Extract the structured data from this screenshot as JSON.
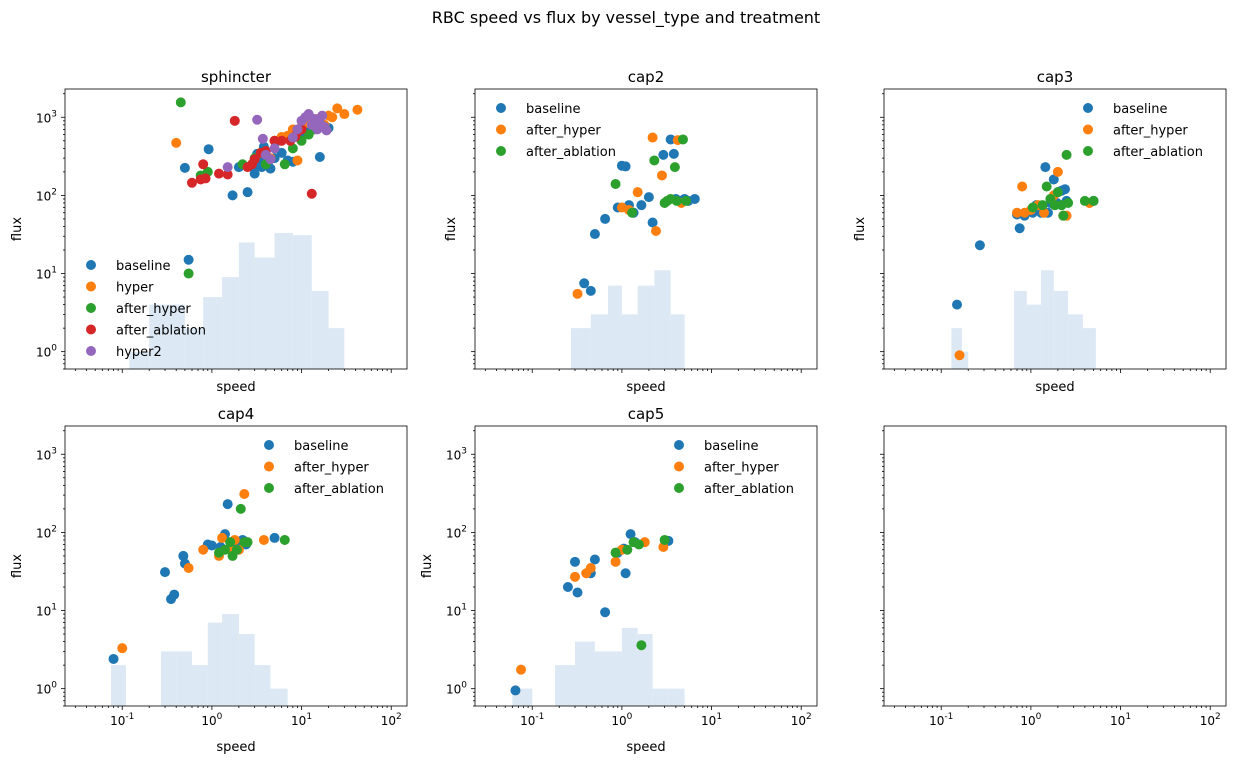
{
  "suptitle": "RBC speed vs flux by vessel_type and treatment",
  "colors": {
    "baseline": "#1f77b4",
    "hyper": "#ff7f0e",
    "after_hyper": "#ff7f0e",
    "after_ablation": "#2ca02c",
    "sphincter_after_hyper": "#2ca02c",
    "sphincter_after_ablation": "#d62728",
    "hyper2": "#9467bd",
    "hist": "#dce8f4"
  },
  "axes_common": {
    "xscale": "log",
    "yscale": "log",
    "xlim": [
      0.023,
      150
    ],
    "ylim": [
      0.6,
      2300
    ],
    "xticks": [
      0.1,
      1,
      10,
      100
    ],
    "xticklabels": [
      "10^-1",
      "10^0",
      "10^1",
      "10^2"
    ],
    "yticks": [
      1,
      10,
      100,
      1000
    ],
    "yticklabels": [
      "10^0",
      "10^1",
      "10^2",
      "10^3"
    ]
  },
  "chart_data": [
    {
      "type": "scatter",
      "title": "sphincter",
      "xlabel": "speed",
      "ylabel": "flux",
      "legend_position": "lower-left",
      "hist_bins": [
        0.12,
        0.2,
        0.3,
        0.5,
        0.8,
        1.3,
        2,
        3,
        5,
        8,
        13,
        20,
        30,
        45
      ],
      "hist_counts": [
        1,
        4,
        4,
        2,
        5,
        9,
        25,
        16,
        33,
        31,
        6,
        2,
        0
      ],
      "series": [
        {
          "name": "baseline",
          "color": "#1f77b4",
          "x": [
            0.5,
            0.55,
            0.92,
            1.7,
            2.0,
            2.5,
            3.0,
            3.5,
            4.0,
            4.5,
            5.0,
            6.0,
            7.0,
            8.0,
            3.2,
            3.8,
            5.5,
            10,
            12,
            14,
            20,
            16,
            2.9,
            3.6,
            4.2
          ],
          "y": [
            225,
            15,
            390,
            100,
            230,
            110,
            190,
            260,
            290,
            220,
            300,
            350,
            280,
            270,
            340,
            420,
            500,
            600,
            650,
            720,
            730,
            310,
            230,
            230,
            250
          ]
        },
        {
          "name": "hyper",
          "color": "#ff7f0e",
          "x": [
            0.4,
            8,
            10,
            12,
            15,
            20,
            25,
            30,
            42,
            6,
            7,
            5,
            4.5,
            9,
            18,
            22
          ],
          "y": [
            470,
            700,
            750,
            850,
            950,
            1050,
            1300,
            1100,
            1250,
            560,
            580,
            500,
            300,
            280,
            800,
            1000
          ]
        },
        {
          "name": "after_hyper",
          "color": "#2ca02c",
          "x": [
            0.45,
            0.55,
            0.75,
            0.9,
            2.2,
            3.0,
            3.5,
            4.0,
            6.5,
            8,
            10,
            12,
            14,
            16,
            18
          ],
          "y": [
            1550,
            10,
            180,
            200,
            250,
            300,
            350,
            250,
            250,
            400,
            500,
            600,
            700,
            800,
            750
          ]
        },
        {
          "name": "after_ablation",
          "color": "#d62728",
          "x": [
            0.6,
            0.75,
            0.8,
            0.85,
            1.2,
            1.5,
            1.8,
            2.5,
            2.8,
            3.0,
            3.5,
            4.0,
            5.0,
            6.0,
            7.5,
            8.5,
            9,
            10,
            13
          ],
          "y": [
            145,
            160,
            250,
            165,
            190,
            185,
            900,
            230,
            250,
            290,
            350,
            370,
            500,
            500,
            500,
            560,
            650,
            700,
            105
          ]
        },
        {
          "name": "hyper2",
          "color": "#9467bd",
          "x": [
            1.5,
            3.2,
            3.7,
            4.0,
            4.5,
            5.0,
            8.0,
            9,
            10,
            11,
            12,
            13,
            14,
            15,
            16,
            17,
            18,
            19
          ],
          "y": [
            230,
            930,
            530,
            330,
            290,
            400,
            550,
            700,
            900,
            1000,
            1100,
            800,
            950,
            700,
            850,
            1050,
            750,
            680
          ]
        }
      ]
    },
    {
      "type": "scatter",
      "title": "cap2",
      "xlabel": "speed",
      "ylabel": "flux",
      "legend_position": "upper-left",
      "hist_bins": [
        0.27,
        0.45,
        0.7,
        1.0,
        1.5,
        2.3,
        3.5,
        5.0,
        7.8
      ],
      "hist_counts": [
        2,
        3,
        7,
        3,
        7,
        11,
        3,
        0
      ],
      "series": [
        {
          "name": "baseline",
          "color": "#1f77b4",
          "x": [
            0.38,
            0.45,
            0.5,
            0.65,
            0.9,
            1.0,
            1.1,
            1.2,
            1.35,
            1.65,
            2.0,
            2.2,
            2.9,
            3.5,
            3.8,
            4.0,
            4.5,
            5.0,
            5.5,
            6.5
          ],
          "y": [
            7.5,
            6,
            32,
            50,
            70,
            240,
            235,
            75,
            60,
            75,
            95,
            45,
            330,
            520,
            340,
            90,
            85,
            90,
            85,
            90
          ]
        },
        {
          "name": "after_hyper",
          "color": "#ff7f0e",
          "x": [
            0.32,
            1.0,
            1.2,
            1.5,
            2.2,
            2.4,
            2.8,
            4.2,
            4.6
          ],
          "y": [
            5.5,
            70,
            65,
            110,
            550,
            35,
            180,
            510,
            80
          ]
        },
        {
          "name": "after_ablation",
          "color": "#2ca02c",
          "x": [
            0.85,
            1.3,
            2.3,
            3.0,
            3.2,
            3.5,
            3.9,
            4.1,
            4.8,
            5.2
          ],
          "y": [
            140,
            60,
            280,
            80,
            85,
            90,
            230,
            85,
            520,
            85
          ]
        }
      ]
    },
    {
      "type": "scatter",
      "title": "cap3",
      "xlabel": "speed",
      "ylabel": "flux",
      "legend_position": "upper-right",
      "hist_bins": [
        0.13,
        0.17,
        0.2,
        0.65,
        0.9,
        1.3,
        1.8,
        2.6,
        3.8,
        5.3,
        7.5
      ],
      "hist_counts": [
        2,
        1,
        0,
        6,
        4,
        11,
        6,
        3,
        2,
        0
      ],
      "series": [
        {
          "name": "baseline",
          "color": "#1f77b4",
          "x": [
            0.15,
            0.27,
            0.7,
            0.75,
            0.85,
            1.05,
            1.15,
            1.3,
            1.45,
            1.55,
            1.65,
            1.8,
            1.95,
            2.0,
            2.2,
            2.4,
            2.5,
            5.0
          ],
          "y": [
            4,
            23,
            57,
            38,
            55,
            60,
            75,
            60,
            230,
            60,
            80,
            160,
            80,
            110,
            115,
            120,
            85,
            85
          ]
        },
        {
          "name": "after_hyper",
          "color": "#ff7f0e",
          "x": [
            0.16,
            0.7,
            0.8,
            0.85,
            1.0,
            1.2,
            1.4,
            1.7,
            1.8,
            2.0,
            2.3,
            2.5,
            4.5
          ],
          "y": [
            0.9,
            60,
            130,
            60,
            65,
            75,
            60,
            90,
            100,
            200,
            55,
            55,
            80
          ]
        },
        {
          "name": "after_ablation",
          "color": "#2ca02c",
          "x": [
            1.05,
            1.35,
            1.5,
            1.65,
            1.85,
            2.0,
            2.2,
            2.3,
            2.5,
            2.6,
            4.0,
            5.0
          ],
          "y": [
            70,
            75,
            130,
            90,
            75,
            110,
            75,
            55,
            330,
            80,
            85,
            85
          ]
        }
      ]
    },
    {
      "type": "scatter",
      "title": "cap4",
      "xlabel": "speed",
      "ylabel": "flux",
      "legend_position": "upper-right",
      "hist_bins": [
        0.075,
        0.11,
        0.27,
        0.4,
        0.6,
        0.9,
        1.3,
        2.0,
        3.0,
        4.5,
        7.0
      ],
      "hist_counts": [
        2,
        0,
        3,
        3,
        2,
        7,
        9,
        5,
        2,
        1
      ],
      "series": [
        {
          "name": "baseline",
          "color": "#1f77b4",
          "x": [
            0.08,
            0.3,
            0.35,
            0.38,
            0.48,
            0.5,
            0.9,
            1.0,
            1.25,
            1.4,
            1.5,
            1.7,
            2.0,
            2.2,
            2.4,
            5.0
          ],
          "y": [
            2.4,
            31,
            14,
            16,
            50,
            40,
            70,
            68,
            65,
            95,
            230,
            70,
            75,
            80,
            70,
            85
          ]
        },
        {
          "name": "after_hyper",
          "color": "#ff7f0e",
          "x": [
            0.1,
            0.55,
            0.8,
            1.2,
            1.3,
            1.6,
            1.8,
            2.0,
            2.3,
            3.8
          ],
          "y": [
            3.3,
            35,
            60,
            50,
            85,
            60,
            80,
            60,
            310,
            80
          ]
        },
        {
          "name": "after_ablation",
          "color": "#2ca02c",
          "x": [
            1.2,
            1.4,
            1.6,
            1.7,
            1.9,
            2.1,
            2.3,
            2.5,
            6.5
          ],
          "y": [
            55,
            60,
            75,
            50,
            60,
            200,
            75,
            75,
            80
          ]
        }
      ]
    },
    {
      "type": "scatter",
      "title": "cap5",
      "xlabel": "speed",
      "ylabel": "flux",
      "legend_position": "upper-right",
      "hist_bins": [
        0.06,
        0.1,
        0.18,
        0.3,
        0.5,
        0.8,
        1.0,
        1.5,
        2.2,
        3.3,
        5.0
      ],
      "hist_counts": [
        1,
        0,
        2,
        4,
        3,
        3,
        6,
        5,
        1,
        1
      ],
      "series": [
        {
          "name": "baseline",
          "color": "#1f77b4",
          "x": [
            0.065,
            0.25,
            0.3,
            0.32,
            0.45,
            0.5,
            0.65,
            0.9,
            1.05,
            1.1,
            1.25,
            1.4,
            3.3
          ],
          "y": [
            0.95,
            20,
            42,
            17,
            30,
            45,
            9.5,
            55,
            62,
            30,
            95,
            75,
            78
          ]
        },
        {
          "name": "after_hyper",
          "color": "#ff7f0e",
          "x": [
            0.075,
            0.3,
            0.4,
            0.45,
            0.85,
            1.0,
            1.8,
            2.9
          ],
          "y": [
            1.75,
            27,
            30,
            35,
            42,
            60,
            75,
            65
          ]
        },
        {
          "name": "after_ablation",
          "color": "#2ca02c",
          "x": [
            0.85,
            1.15,
            1.35,
            1.55,
            1.65,
            3.0
          ],
          "y": [
            55,
            60,
            75,
            70,
            3.6,
            80
          ]
        }
      ]
    }
  ]
}
